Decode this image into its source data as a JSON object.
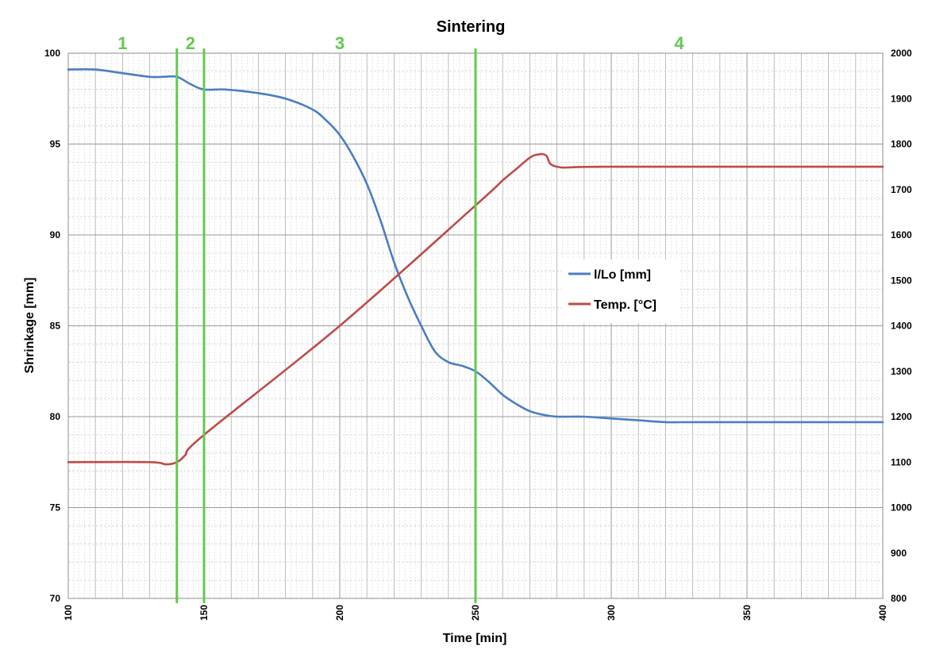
{
  "chart_data": {
    "type": "line",
    "title": "Sintering",
    "xlabel": "Time [min]",
    "ylabel": "Shrinkage [mm]",
    "y2label": "",
    "xlim": [
      100,
      400
    ],
    "ylim": [
      70,
      100
    ],
    "y2lim": [
      800,
      2000
    ],
    "x_ticks": [
      "100",
      "150",
      "200",
      "250",
      "300",
      "350",
      "400"
    ],
    "y_ticks": [
      "70",
      "75",
      "80",
      "85",
      "90",
      "95",
      "100"
    ],
    "y2_ticks": [
      "800",
      "900",
      "1000",
      "1100",
      "1200",
      "1300",
      "1400",
      "1500",
      "1600",
      "1700",
      "1800",
      "1900",
      "2000"
    ],
    "grid": true,
    "legend_position": "center-right",
    "series": [
      {
        "name": "l/Lo [mm]",
        "axis": "left",
        "color": "#4a7ec2",
        "x": [
          100,
          110,
          120,
          130,
          135,
          140,
          145,
          150,
          158,
          170,
          180,
          190,
          195,
          200,
          205,
          210,
          215,
          220,
          225,
          230,
          235,
          240,
          245,
          250,
          255,
          260,
          265,
          270,
          275,
          280,
          290,
          300,
          310,
          320,
          330,
          350,
          400
        ],
        "y": [
          99.1,
          99.1,
          98.9,
          98.7,
          98.7,
          98.7,
          98.3,
          98.0,
          98.0,
          97.8,
          97.5,
          96.9,
          96.3,
          95.5,
          94.3,
          92.8,
          90.8,
          88.5,
          86.6,
          85.0,
          83.6,
          83.0,
          82.8,
          82.5,
          81.9,
          81.2,
          80.7,
          80.3,
          80.1,
          80.0,
          80.0,
          79.9,
          79.8,
          79.7,
          79.7,
          79.7,
          79.7
        ]
      },
      {
        "name": "Temp. [°C]",
        "axis": "right",
        "color": "#be4b48",
        "x": [
          100,
          130,
          136,
          140,
          143,
          150,
          200,
          250,
          260,
          265,
          270,
          273,
          276,
          280,
          300,
          400
        ],
        "y": [
          1100,
          1100,
          1095,
          1100,
          1115,
          1160,
          1400,
          1665,
          1720,
          1745,
          1770,
          1777,
          1775,
          1750,
          1750,
          1750
        ]
      }
    ],
    "phase_lines": {
      "color": "#64c850",
      "x": [
        140,
        150,
        250
      ],
      "labels": [
        "1",
        "2",
        "3",
        "4"
      ],
      "label_x": [
        120,
        145,
        200,
        325
      ]
    }
  }
}
